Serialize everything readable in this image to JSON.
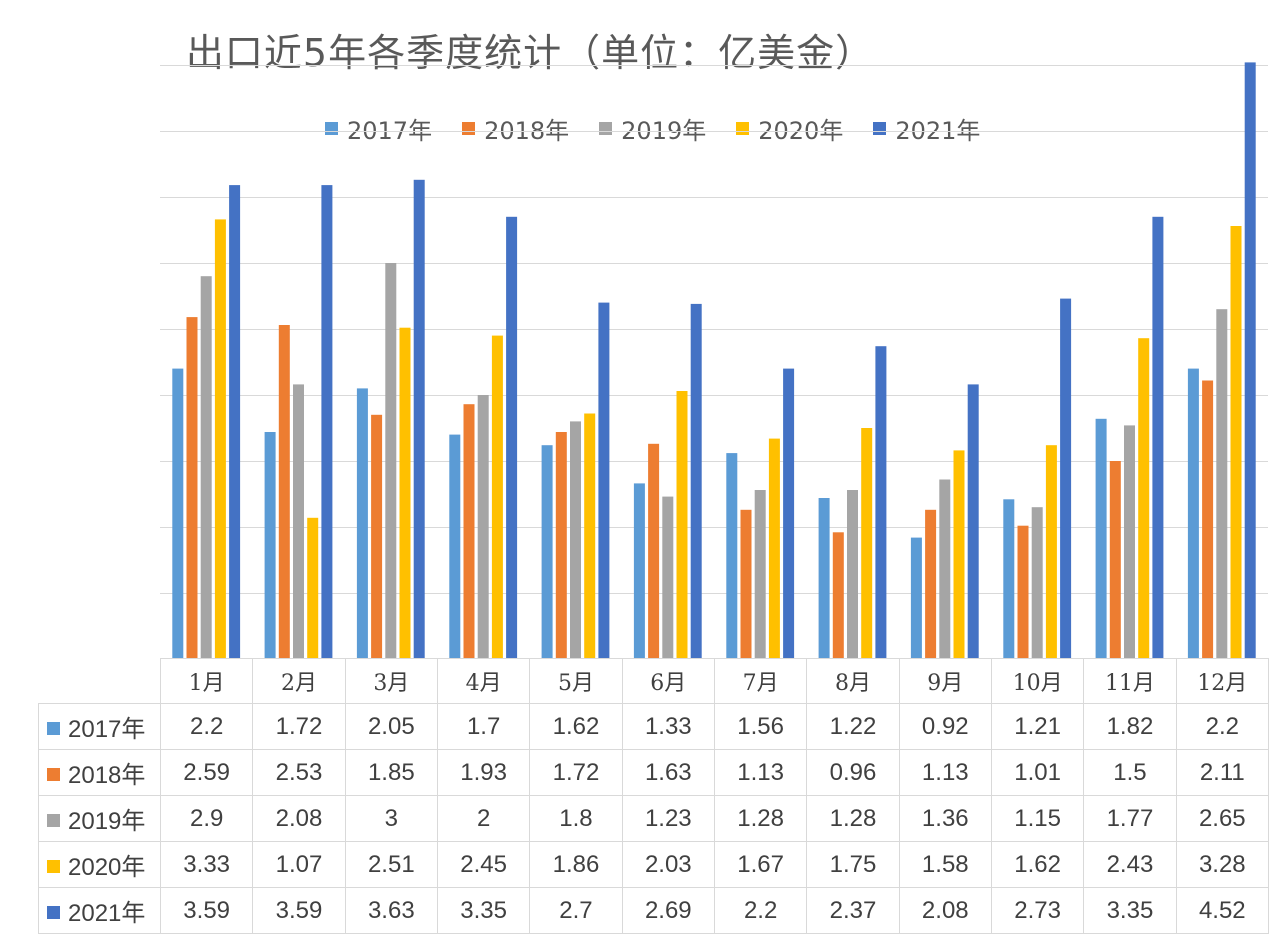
{
  "chart_data": {
    "type": "bar",
    "title": "出口近5年各季度统计（单位：亿美金）",
    "categories": [
      "1月",
      "2月",
      "3月",
      "4月",
      "5月",
      "6月",
      "7月",
      "8月",
      "9月",
      "10月",
      "11月",
      "12月"
    ],
    "series": [
      {
        "name": "2017年",
        "color": "#5b9bd5",
        "values": [
          2.2,
          1.72,
          2.05,
          1.7,
          1.62,
          1.33,
          1.56,
          1.22,
          0.92,
          1.21,
          1.82,
          2.2
        ]
      },
      {
        "name": "2018年",
        "color": "#ed7d31",
        "values": [
          2.59,
          2.53,
          1.85,
          1.93,
          1.72,
          1.63,
          1.13,
          0.96,
          1.13,
          1.01,
          1.5,
          2.11
        ]
      },
      {
        "name": "2019年",
        "color": "#a5a5a5",
        "values": [
          2.9,
          2.08,
          3,
          2,
          1.8,
          1.23,
          1.28,
          1.28,
          1.36,
          1.15,
          1.77,
          2.65
        ]
      },
      {
        "name": "2020年",
        "color": "#ffc000",
        "values": [
          3.33,
          1.07,
          2.51,
          2.45,
          1.86,
          2.03,
          1.67,
          1.75,
          1.58,
          1.62,
          2.43,
          3.28
        ]
      },
      {
        "name": "2021年",
        "color": "#4472c4",
        "values": [
          3.59,
          3.59,
          3.63,
          3.35,
          2.7,
          2.69,
          2.2,
          2.37,
          2.08,
          2.73,
          3.35,
          4.52
        ]
      }
    ],
    "xlabel": "",
    "ylabel": "",
    "ylim": [
      0,
      4.5
    ],
    "grid": true,
    "legend": "top",
    "y_tick_labels_visible": false,
    "data_table": true
  }
}
